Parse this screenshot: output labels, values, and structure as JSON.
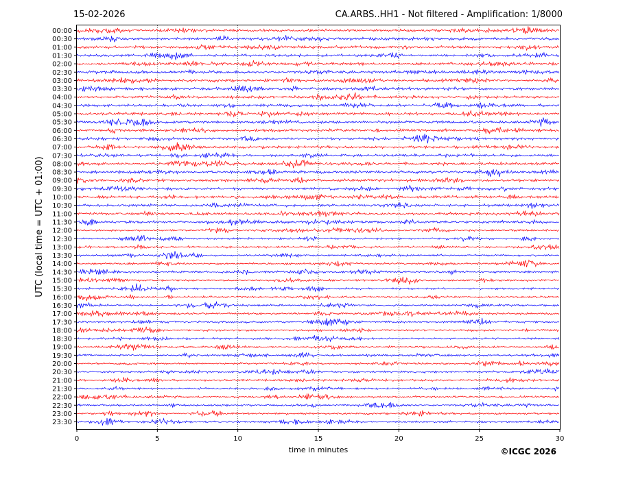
{
  "chart_data": {
    "type": "line",
    "title_left": "15-02-2026",
    "title_right": "CA.ARBS..HH1 - Not filtered - Amplification: 1/8000",
    "xlabel": "time in minutes",
    "ylabel": "UTC (local time = UTC + 01:00)",
    "x_ticks": [
      0,
      5,
      10,
      15,
      20,
      25,
      30
    ],
    "xlim": [
      0,
      30
    ],
    "grid": "vertical dotted",
    "rows": [
      "00:00",
      "00:30",
      "01:00",
      "01:30",
      "02:00",
      "02:30",
      "03:00",
      "03:30",
      "04:00",
      "04:30",
      "05:00",
      "05:30",
      "06:00",
      "06:30",
      "07:00",
      "07:30",
      "08:00",
      "08:30",
      "09:00",
      "09:30",
      "10:00",
      "10:30",
      "11:00",
      "11:30",
      "12:00",
      "12:30",
      "13:00",
      "13:30",
      "14:00",
      "14:30",
      "15:00",
      "15:30",
      "16:00",
      "16:30",
      "17:00",
      "17:30",
      "18:00",
      "18:30",
      "19:00",
      "19:30",
      "20:00",
      "20:30",
      "21:00",
      "21:30",
      "22:00",
      "22:30",
      "23:00",
      "23:30"
    ],
    "row_colors": [
      "#ff0000",
      "#0000ff"
    ],
    "description_rows": "48 half-hour seismogram traces alternating red (on the hour) and blue (on the half hour)"
  },
  "footer": {
    "copyright": "©ICGC 2026"
  }
}
